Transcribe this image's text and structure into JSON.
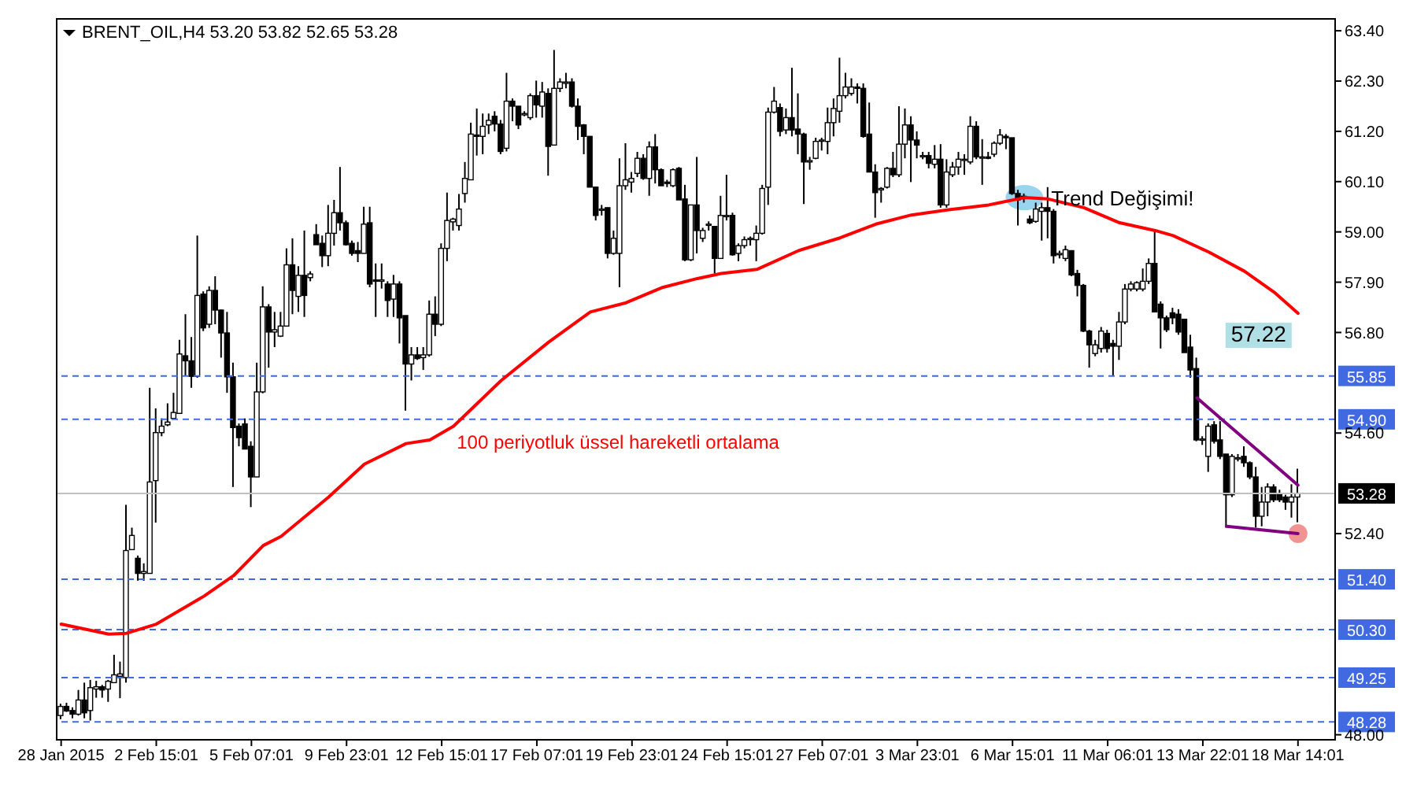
{
  "chart_data": {
    "type": "candlestick",
    "title": "BRENT_OIL,H4 53.20 53.82 52.65 53.28",
    "color": "#000000",
    "categories": [
      "28 Jan 2015",
      null,
      null,
      null,
      null,
      null,
      null,
      null,
      null,
      null,
      null,
      null,
      null,
      null,
      null,
      null,
      "2 Feb 15:01",
      null,
      null,
      null,
      null,
      null,
      null,
      null,
      null,
      null,
      null,
      null,
      null,
      null,
      null,
      null,
      "5 Feb 07:01",
      null,
      null,
      null,
      null,
      null,
      null,
      null,
      null,
      null,
      null,
      null,
      null,
      null,
      null,
      null,
      "9 Feb 23:01",
      null,
      null,
      null,
      null,
      null,
      null,
      null,
      null,
      null,
      null,
      null,
      null,
      null,
      null,
      null,
      "12 Feb 15:01",
      null,
      null,
      null,
      null,
      null,
      null,
      null,
      null,
      null,
      null,
      null,
      null,
      null,
      null,
      null,
      "17 Feb 07:01",
      null,
      null,
      null,
      null,
      null,
      null,
      null,
      null,
      null,
      null,
      null,
      null,
      null,
      null,
      null,
      "19 Feb 23:01",
      null,
      null,
      null,
      null,
      null,
      null,
      null,
      null,
      null,
      null,
      null,
      null,
      null,
      null,
      null,
      "24 Feb 15:01",
      null,
      null,
      null,
      null,
      null,
      null,
      null,
      null,
      null,
      null,
      null,
      null,
      null,
      null,
      null,
      "27 Feb 07:01",
      null,
      null,
      null,
      null,
      null,
      null,
      null,
      null,
      null,
      null,
      null,
      null,
      null,
      null,
      null,
      "3 Mar 23:01",
      null,
      null,
      null,
      null,
      null,
      null,
      null,
      null,
      null,
      null,
      null,
      null,
      null,
      null,
      null,
      "6 Mar 15:01",
      null,
      null,
      null,
      null,
      null,
      null,
      null,
      null,
      null,
      null,
      null,
      null,
      null,
      null,
      null,
      "11 Mar 06:01",
      null,
      null,
      null,
      null,
      null,
      null,
      null,
      null,
      null,
      null,
      null,
      null,
      null,
      null,
      null,
      "13 Mar 22:01",
      null,
      null,
      null,
      null,
      null,
      null,
      null,
      null,
      null,
      null,
      null,
      null,
      null,
      null,
      null,
      "18 Mar 14:01"
    ],
    "ohlc": [
      [
        48.42,
        48.68,
        48.34,
        48.62
      ],
      [
        48.62,
        48.7,
        48.5,
        48.52
      ],
      [
        48.53,
        48.6,
        48.36,
        48.45
      ],
      [
        48.45,
        48.98,
        48.42,
        48.76
      ],
      [
        48.76,
        49.14,
        48.36,
        48.48
      ],
      [
        48.53,
        49.2,
        48.31,
        49.03
      ],
      [
        49.0,
        49.18,
        48.81,
        49.05
      ],
      [
        49.05,
        49.09,
        48.81,
        48.98
      ],
      [
        49.0,
        49.2,
        48.72,
        49.17
      ],
      [
        49.14,
        49.75,
        49.14,
        49.31
      ],
      [
        49.28,
        49.6,
        48.8,
        49.33
      ],
      [
        49.25,
        53.03,
        49.14,
        52.03
      ],
      [
        52.05,
        52.53,
        52.05,
        52.36
      ],
      [
        51.86,
        51.92,
        51.37,
        51.53
      ],
      [
        51.53,
        51.75,
        51.37,
        51.57
      ],
      [
        51.53,
        55.59,
        51.53,
        53.53
      ],
      [
        53.56,
        55.14,
        52.64,
        54.61
      ],
      [
        54.61,
        54.92,
        54.53,
        54.75
      ],
      [
        54.78,
        55.25,
        54.75,
        54.84
      ],
      [
        54.92,
        55.48,
        54.92,
        55.05
      ],
      [
        55.03,
        56.64,
        55.03,
        56.33
      ],
      [
        56.29,
        57.2,
        55.86,
        56.18
      ],
      [
        56.18,
        56.7,
        55.59,
        55.84
      ],
      [
        55.84,
        58.92,
        55.81,
        57.61
      ],
      [
        57.64,
        57.7,
        56.83,
        56.9
      ],
      [
        56.98,
        57.81,
        56.9,
        57.72
      ],
      [
        57.72,
        58.03,
        56.98,
        57.29
      ],
      [
        57.29,
        57.3,
        56.25,
        56.79
      ],
      [
        56.79,
        57.25,
        55.48,
        55.83
      ],
      [
        55.83,
        56.14,
        53.42,
        54.72
      ],
      [
        54.75,
        54.81,
        54.31,
        54.5
      ],
      [
        54.8,
        54.92,
        54.25,
        54.25
      ],
      [
        54.31,
        54.42,
        52.98,
        53.64
      ],
      [
        53.64,
        56.14,
        53.64,
        55.5
      ],
      [
        55.5,
        57.81,
        55.47,
        57.36
      ],
      [
        57.36,
        57.42,
        56.03,
        56.81
      ],
      [
        56.81,
        57.25,
        56.48,
        56.86
      ],
      [
        56.72,
        57.25,
        56.7,
        56.94
      ],
      [
        56.94,
        58.64,
        56.94,
        58.28
      ],
      [
        58.28,
        58.86,
        57.2,
        57.72
      ],
      [
        57.59,
        58.25,
        57.25,
        58.05
      ],
      [
        58.05,
        59.03,
        57.14,
        57.61
      ],
      [
        58.0,
        58.14,
        57.92,
        58.08
      ],
      [
        58.94,
        59.17,
        58.72,
        58.72
      ],
      [
        58.75,
        58.92,
        58.23,
        58.48
      ],
      [
        58.48,
        59.59,
        58.25,
        58.97
      ],
      [
        58.97,
        59.7,
        58.7,
        59.42
      ],
      [
        59.42,
        60.42,
        59.03,
        59.2
      ],
      [
        59.2,
        59.25,
        58.7,
        58.72
      ],
      [
        58.75,
        58.81,
        58.48,
        58.53
      ],
      [
        58.59,
        58.78,
        58.34,
        58.53
      ],
      [
        58.53,
        59.55,
        58.53,
        59.17
      ],
      [
        59.2,
        59.55,
        57.79,
        57.86
      ],
      [
        57.95,
        58.31,
        57.14,
        57.92
      ],
      [
        57.92,
        58.31,
        57.76,
        57.95
      ],
      [
        57.86,
        57.92,
        57.14,
        57.5
      ],
      [
        57.53,
        58.06,
        57.14,
        57.86
      ],
      [
        57.86,
        57.92,
        56.56,
        57.12
      ],
      [
        57.17,
        57.17,
        55.09,
        56.11
      ],
      [
        56.11,
        56.48,
        55.75,
        56.31
      ],
      [
        56.31,
        56.48,
        56.2,
        56.23
      ],
      [
        56.25,
        56.48,
        55.98,
        56.31
      ],
      [
        56.31,
        57.5,
        56.27,
        57.2
      ],
      [
        57.2,
        57.59,
        56.72,
        56.98
      ],
      [
        56.98,
        58.75,
        56.94,
        58.64
      ],
      [
        58.64,
        59.86,
        58.36,
        59.25
      ],
      [
        59.22,
        59.31,
        59.03,
        59.28
      ],
      [
        59.14,
        59.83,
        59.03,
        59.5
      ],
      [
        59.84,
        60.53,
        59.64,
        60.17
      ],
      [
        60.14,
        61.39,
        60.14,
        61.14
      ],
      [
        61.12,
        61.7,
        60.67,
        61.09
      ],
      [
        61.09,
        61.59,
        60.7,
        61.31
      ],
      [
        61.34,
        61.59,
        61.14,
        61.44
      ],
      [
        61.53,
        61.64,
        61.2,
        61.36
      ],
      [
        61.36,
        61.45,
        60.7,
        60.76
      ],
      [
        60.83,
        62.48,
        60.76,
        61.86
      ],
      [
        61.86,
        61.92,
        61.42,
        61.75
      ],
      [
        61.75,
        61.75,
        61.25,
        61.34
      ],
      [
        61.56,
        61.64,
        61.53,
        61.59
      ],
      [
        61.5,
        62.03,
        61.45,
        61.98
      ],
      [
        61.98,
        62.31,
        61.5,
        61.78
      ],
      [
        61.75,
        62.28,
        61.5,
        62.06
      ],
      [
        62.03,
        62.14,
        60.23,
        60.87
      ],
      [
        60.9,
        62.98,
        60.9,
        62.14
      ],
      [
        62.14,
        62.36,
        62.06,
        62.28
      ],
      [
        62.25,
        62.48,
        62.14,
        62.28
      ],
      [
        62.28,
        62.36,
        61.72,
        61.75
      ],
      [
        61.75,
        61.92,
        61.01,
        61.31
      ],
      [
        61.34,
        61.36,
        60.7,
        61.09
      ],
      [
        61.09,
        61.09,
        59.98,
        59.98
      ],
      [
        59.98,
        59.98,
        59.25,
        59.36
      ],
      [
        59.5,
        59.59,
        59.36,
        59.5
      ],
      [
        59.53,
        59.53,
        58.42,
        58.53
      ],
      [
        58.53,
        59.03,
        58.5,
        58.86
      ],
      [
        58.53,
        60.61,
        57.79,
        60.01
      ],
      [
        60.01,
        60.94,
        59.92,
        60.14
      ],
      [
        60.09,
        60.31,
        59.86,
        60.17
      ],
      [
        60.28,
        60.75,
        60.2,
        60.61
      ],
      [
        60.61,
        60.7,
        60.14,
        60.17
      ],
      [
        60.17,
        60.98,
        59.79,
        60.86
      ],
      [
        60.86,
        61.14,
        60.06,
        60.36
      ],
      [
        60.36,
        60.39,
        60.01,
        60.01
      ],
      [
        60.09,
        60.14,
        59.98,
        60.06
      ],
      [
        60.01,
        60.39,
        59.98,
        60.36
      ],
      [
        60.39,
        60.42,
        59.7,
        59.7
      ],
      [
        59.72,
        60.03,
        58.36,
        58.39
      ],
      [
        58.39,
        59.59,
        58.36,
        59.59
      ],
      [
        59.59,
        60.64,
        58.53,
        59.03
      ],
      [
        58.86,
        59.09,
        58.78,
        59.03
      ],
      [
        59.17,
        59.23,
        59.03,
        59.17
      ],
      [
        59.12,
        59.12,
        58.09,
        58.42
      ],
      [
        58.42,
        59.79,
        58.42,
        59.36
      ],
      [
        59.36,
        60.25,
        59.25,
        59.36
      ],
      [
        59.36,
        59.42,
        58.48,
        58.5
      ],
      [
        58.53,
        58.75,
        58.36,
        58.7
      ],
      [
        58.7,
        58.9,
        58.64,
        58.83
      ],
      [
        58.86,
        58.9,
        58.7,
        58.86
      ],
      [
        58.83,
        59.14,
        58.36,
        58.97
      ],
      [
        58.97,
        60.03,
        58.94,
        59.95
      ],
      [
        59.98,
        61.72,
        59.59,
        61.62
      ],
      [
        61.62,
        62.17,
        61.59,
        61.86
      ],
      [
        61.72,
        61.81,
        61.09,
        61.2
      ],
      [
        61.23,
        61.7,
        61.14,
        61.5
      ],
      [
        61.5,
        62.59,
        61.09,
        61.23
      ],
      [
        61.25,
        62.03,
        60.7,
        61.14
      ],
      [
        61.14,
        61.17,
        59.61,
        60.53
      ],
      [
        60.53,
        60.64,
        60.36,
        60.56
      ],
      [
        60.61,
        61.06,
        60.59,
        60.98
      ],
      [
        61.0,
        61.06,
        60.78,
        61.01
      ],
      [
        60.98,
        61.72,
        60.7,
        61.39
      ],
      [
        61.39,
        61.92,
        61.09,
        61.7
      ],
      [
        61.64,
        62.81,
        61.39,
        61.98
      ],
      [
        61.98,
        62.48,
        61.92,
        62.17
      ],
      [
        62.03,
        62.36,
        61.98,
        62.17
      ],
      [
        62.17,
        62.25,
        61.81,
        62.14
      ],
      [
        62.14,
        62.25,
        61.06,
        61.09
      ],
      [
        61.14,
        61.83,
        60.31,
        60.31
      ],
      [
        60.31,
        60.48,
        59.31,
        59.86
      ],
      [
        59.92,
        59.98,
        59.64,
        59.95
      ],
      [
        59.98,
        60.42,
        59.95,
        60.39
      ],
      [
        60.39,
        60.75,
        60.2,
        60.25
      ],
      [
        60.25,
        61.75,
        60.2,
        60.92
      ],
      [
        60.92,
        61.7,
        60.61,
        61.34
      ],
      [
        61.34,
        61.53,
        60.09,
        61.01
      ],
      [
        61.01,
        61.2,
        60.61,
        60.9
      ],
      [
        60.67,
        60.75,
        60.59,
        60.67
      ],
      [
        60.67,
        60.75,
        60.39,
        60.5
      ],
      [
        60.48,
        60.9,
        60.39,
        60.59
      ],
      [
        60.59,
        60.92,
        59.53,
        59.59
      ],
      [
        59.59,
        60.59,
        59.53,
        60.31
      ],
      [
        60.25,
        60.53,
        60.2,
        60.42
      ],
      [
        60.42,
        60.75,
        60.25,
        60.59
      ],
      [
        60.59,
        60.7,
        60.25,
        60.59
      ],
      [
        60.53,
        61.53,
        60.48,
        61.31
      ],
      [
        61.31,
        61.42,
        60.59,
        60.64
      ],
      [
        60.64,
        61.03,
        60.03,
        60.64
      ],
      [
        60.64,
        60.75,
        60.59,
        60.61
      ],
      [
        60.7,
        60.98,
        60.64,
        60.94
      ],
      [
        60.94,
        61.25,
        60.9,
        61.12
      ],
      [
        61.09,
        61.14,
        60.81,
        61.06
      ],
      [
        61.06,
        61.06,
        59.81,
        59.84
      ],
      [
        59.84,
        59.92,
        59.14,
        59.7
      ],
      [
        59.78,
        59.84,
        59.64,
        59.78
      ],
      [
        59.28,
        59.36,
        59.17,
        59.2
      ],
      [
        59.23,
        59.64,
        59.2,
        59.5
      ],
      [
        59.45,
        59.64,
        58.81,
        59.53
      ],
      [
        59.53,
        59.98,
        58.86,
        59.45
      ],
      [
        59.45,
        59.5,
        58.31,
        58.48
      ],
      [
        58.5,
        58.59,
        58.42,
        58.53
      ],
      [
        58.42,
        58.7,
        58.36,
        58.61
      ],
      [
        58.59,
        58.59,
        58.03,
        58.06
      ],
      [
        58.09,
        58.17,
        57.59,
        57.83
      ],
      [
        57.83,
        57.86,
        56.81,
        56.83
      ],
      [
        56.83,
        56.86,
        56.03,
        56.53
      ],
      [
        56.34,
        56.64,
        56.28,
        56.53
      ],
      [
        56.45,
        56.92,
        56.36,
        56.83
      ],
      [
        56.78,
        56.86,
        56.36,
        56.45
      ],
      [
        56.56,
        56.64,
        55.86,
        56.5
      ],
      [
        56.5,
        57.25,
        56.2,
        57.03
      ],
      [
        57.03,
        57.86,
        56.98,
        57.75
      ],
      [
        57.75,
        57.92,
        57.7,
        57.86
      ],
      [
        57.75,
        57.92,
        57.7,
        57.89
      ],
      [
        57.75,
        58.2,
        57.7,
        57.92
      ],
      [
        57.92,
        58.42,
        57.86,
        58.31
      ],
      [
        58.31,
        59.06,
        57.25,
        57.25
      ],
      [
        57.42,
        57.48,
        56.45,
        57.12
      ],
      [
        57.12,
        57.17,
        56.81,
        56.86
      ],
      [
        57.23,
        57.34,
        56.98,
        57.12
      ],
      [
        57.2,
        57.31,
        56.75,
        56.81
      ],
      [
        57.09,
        57.09,
        56.36,
        56.36
      ],
      [
        56.48,
        56.75,
        55.81,
        55.98
      ],
      [
        56.01,
        56.25,
        54.42,
        54.45
      ],
      [
        54.45,
        54.53,
        54.34,
        54.47
      ],
      [
        54.09,
        54.81,
        53.75,
        54.75
      ],
      [
        54.78,
        54.86,
        54.37,
        54.42
      ],
      [
        54.45,
        54.86,
        54.03,
        54.09
      ],
      [
        54.14,
        54.14,
        52.53,
        53.25
      ],
      [
        53.25,
        54.14,
        53.2,
        54.09
      ],
      [
        54.06,
        54.14,
        53.98,
        54.06
      ],
      [
        54.09,
        54.31,
        53.86,
        53.95
      ],
      [
        53.95,
        53.98,
        53.59,
        53.64
      ],
      [
        53.64,
        53.86,
        52.53,
        52.78
      ],
      [
        52.78,
        53.42,
        52.56,
        53.09
      ],
      [
        53.09,
        53.5,
        52.78,
        53.42
      ],
      [
        53.42,
        53.48,
        53.09,
        53.14
      ],
      [
        53.28,
        53.36,
        53.09,
        53.14
      ],
      [
        53.2,
        53.25,
        52.92,
        53.09
      ],
      [
        53.09,
        53.48,
        52.75,
        53.2
      ],
      [
        53.2,
        53.82,
        52.65,
        53.28
      ]
    ],
    "series": [
      {
        "type": "line",
        "name": "100 periyotluk üssel hareketli ortalama",
        "color": "#ff0000",
        "values": [
          50.42,
          null,
          null,
          null,
          null,
          null,
          null,
          null,
          50.2,
          null,
          null,
          50.22,
          null,
          null,
          null,
          null,
          50.42,
          null,
          null,
          null,
          null,
          null,
          null,
          null,
          51.03,
          null,
          null,
          null,
          null,
          51.48,
          null,
          null,
          null,
          null,
          52.14,
          null,
          null,
          52.34,
          null,
          null,
          null,
          null,
          null,
          null,
          null,
          53.2,
          null,
          null,
          null,
          null,
          null,
          53.92,
          null,
          null,
          null,
          null,
          null,
          null,
          54.37,
          null,
          null,
          null,
          54.45,
          null,
          null,
          null,
          54.75,
          null,
          null,
          null,
          55.25,
          null,
          null,
          null,
          55.75,
          null,
          null,
          null,
          null,
          null,
          null,
          null,
          56.59,
          null,
          null,
          null,
          null,
          null,
          null,
          57.25,
          null,
          null,
          null,
          null,
          null,
          57.45,
          null,
          null,
          null,
          null,
          null,
          57.78,
          null,
          null,
          null,
          null,
          null,
          57.98,
          null,
          null,
          null,
          58.09,
          null,
          null,
          null,
          null,
          null,
          58.18,
          null,
          null,
          null,
          null,
          null,
          null,
          58.59,
          null,
          null,
          null,
          null,
          null,
          null,
          58.87,
          null,
          null,
          null,
          null,
          null,
          59.17,
          null,
          null,
          null,
          null,
          null,
          59.37,
          null,
          null,
          null,
          null,
          null,
          59.48,
          null,
          null,
          null,
          null,
          null,
          null,
          59.59,
          null,
          null,
          null,
          null,
          null,
          59.75,
          null,
          null,
          null,
          59.72,
          null,
          null,
          null,
          null,
          null,
          59.53,
          null,
          null,
          null,
          null,
          null,
          59.2,
          null,
          null,
          null,
          null,
          null,
          59.03,
          null,
          null,
          58.92,
          null,
          null,
          null,
          null,
          null,
          58.56,
          null,
          null,
          null,
          null,
          null,
          58.14,
          null,
          null,
          null,
          null,
          57.68,
          null,
          null,
          null,
          57.22
        ],
        "value_labels": [
          null,
          null,
          null,
          null,
          null,
          null,
          null,
          null,
          null,
          null,
          null,
          null,
          null,
          null,
          null,
          null,
          null,
          null,
          null,
          null,
          null,
          null,
          null,
          null,
          null,
          null,
          null,
          null,
          null,
          null,
          null,
          null,
          null,
          null,
          null,
          null,
          null,
          null,
          null,
          null,
          null,
          null,
          null,
          null,
          null,
          null,
          null,
          null,
          null,
          null,
          null,
          null,
          null,
          null,
          null,
          null,
          null,
          null,
          null,
          null,
          null,
          null,
          null,
          null,
          null,
          null,
          null,
          null,
          null,
          null,
          null,
          null,
          null,
          null,
          null,
          null,
          null,
          null,
          null,
          null,
          null,
          null,
          null,
          null,
          null,
          null,
          null,
          null,
          null,
          null,
          null,
          null,
          null,
          null,
          null,
          null,
          null,
          null,
          null,
          null,
          null,
          null,
          null,
          null,
          null,
          null,
          null,
          null,
          null,
          null,
          null,
          null,
          null,
          null,
          null,
          null,
          null,
          null,
          null,
          null,
          null,
          null,
          null,
          null,
          null,
          null,
          null,
          null,
          null,
          null,
          null,
          null,
          null,
          null,
          null,
          null,
          null,
          null,
          null,
          null,
          null,
          null,
          null,
          null,
          null,
          null,
          null,
          null,
          null,
          null,
          null,
          null,
          null,
          null,
          null,
          null,
          null,
          null,
          null,
          null,
          null,
          null,
          null,
          null,
          null,
          null,
          null,
          null,
          null,
          null,
          null,
          null,
          null,
          null,
          null,
          null,
          null,
          null,
          null,
          null,
          null,
          null,
          null,
          null,
          null,
          null,
          null,
          null,
          null,
          null,
          null,
          null,
          null,
          null,
          null,
          null,
          null,
          null,
          null,
          null,
          null,
          null,
          null,
          null,
          null,
          null,
          null,
          null,
          "57.22"
        ]
      },
      {
        "type": "line",
        "color": "#800080",
        "values": [
          null,
          null,
          null,
          null,
          null,
          null,
          null,
          null,
          null,
          null,
          null,
          null,
          null,
          null,
          null,
          null,
          null,
          null,
          null,
          null,
          null,
          null,
          null,
          null,
          null,
          null,
          null,
          null,
          null,
          null,
          null,
          null,
          null,
          null,
          null,
          null,
          null,
          null,
          null,
          null,
          null,
          null,
          null,
          null,
          null,
          null,
          null,
          null,
          null,
          null,
          null,
          null,
          null,
          null,
          null,
          null,
          null,
          null,
          null,
          null,
          null,
          null,
          null,
          null,
          null,
          null,
          null,
          null,
          null,
          null,
          null,
          null,
          null,
          null,
          null,
          null,
          null,
          null,
          null,
          null,
          null,
          null,
          null,
          null,
          null,
          null,
          null,
          null,
          null,
          null,
          null,
          null,
          null,
          null,
          null,
          null,
          null,
          null,
          null,
          null,
          null,
          null,
          null,
          null,
          null,
          null,
          null,
          null,
          null,
          null,
          null,
          null,
          null,
          null,
          null,
          null,
          null,
          null,
          null,
          null,
          null,
          null,
          null,
          null,
          null,
          null,
          null,
          null,
          null,
          null,
          null,
          null,
          null,
          null,
          null,
          null,
          null,
          null,
          null,
          null,
          null,
          null,
          null,
          null,
          null,
          null,
          null,
          null,
          null,
          null,
          null,
          null,
          null,
          null,
          null,
          null,
          null,
          null,
          null,
          null,
          null,
          null,
          null,
          null,
          null,
          null,
          null,
          null,
          null,
          null,
          null,
          null,
          null,
          null,
          null,
          null,
          null,
          null,
          null,
          null,
          null,
          null,
          null,
          null,
          null,
          null,
          null,
          null,
          null,
          null,
          null,
          55.37,
          null,
          null,
          null,
          null,
          null,
          null,
          null,
          null,
          null,
          null,
          null,
          null,
          null,
          null,
          null,
          null,
          53.46
        ]
      },
      {
        "type": "line",
        "color": "#800080",
        "values": [
          null,
          null,
          null,
          null,
          null,
          null,
          null,
          null,
          null,
          null,
          null,
          null,
          null,
          null,
          null,
          null,
          null,
          null,
          null,
          null,
          null,
          null,
          null,
          null,
          null,
          null,
          null,
          null,
          null,
          null,
          null,
          null,
          null,
          null,
          null,
          null,
          null,
          null,
          null,
          null,
          null,
          null,
          null,
          null,
          null,
          null,
          null,
          null,
          null,
          null,
          null,
          null,
          null,
          null,
          null,
          null,
          null,
          null,
          null,
          null,
          null,
          null,
          null,
          null,
          null,
          null,
          null,
          null,
          null,
          null,
          null,
          null,
          null,
          null,
          null,
          null,
          null,
          null,
          null,
          null,
          null,
          null,
          null,
          null,
          null,
          null,
          null,
          null,
          null,
          null,
          null,
          null,
          null,
          null,
          null,
          null,
          null,
          null,
          null,
          null,
          null,
          null,
          null,
          null,
          null,
          null,
          null,
          null,
          null,
          null,
          null,
          null,
          null,
          null,
          null,
          null,
          null,
          null,
          null,
          null,
          null,
          null,
          null,
          null,
          null,
          null,
          null,
          null,
          null,
          null,
          null,
          null,
          null,
          null,
          null,
          null,
          null,
          null,
          null,
          null,
          null,
          null,
          null,
          null,
          null,
          null,
          null,
          null,
          null,
          null,
          null,
          null,
          null,
          null,
          null,
          null,
          null,
          null,
          null,
          null,
          null,
          null,
          null,
          null,
          null,
          null,
          null,
          null,
          null,
          null,
          null,
          null,
          null,
          null,
          null,
          null,
          null,
          null,
          null,
          null,
          null,
          null,
          null,
          null,
          null,
          null,
          null,
          null,
          null,
          null,
          null,
          null,
          null,
          null,
          null,
          null,
          52.56,
          null,
          null,
          null,
          null,
          null,
          null,
          null,
          null,
          null,
          null,
          null,
          52.4
        ]
      }
    ],
    "ylim": [
      47.89,
      63.66
    ],
    "yticks": [
      {
        "value": 63.4,
        "label": "63.40"
      },
      {
        "value": 62.3,
        "label": "62.30"
      },
      {
        "value": 61.2,
        "label": "61.20"
      },
      {
        "value": 60.1,
        "label": "60.10"
      },
      {
        "value": 59,
        "label": "59.00"
      },
      {
        "value": 57.9,
        "label": "57.90"
      },
      {
        "value": 56.8,
        "label": "56.80"
      },
      {
        "value": 54.6,
        "label": "54.60"
      },
      {
        "value": 52.4,
        "label": "52.40"
      },
      {
        "value": 48,
        "label": "48.00"
      }
    ],
    "ref_lines": [
      {
        "axis": "y",
        "value": 55.85,
        "label": "55.85",
        "color": "#4169e1",
        "line_style": "dashed"
      },
      {
        "axis": "y",
        "value": 54.9,
        "label": "54.90",
        "color": "#4169e1",
        "line_style": "dashed"
      },
      {
        "axis": "y",
        "value": 53.28,
        "label": "53.28",
        "color": "#c0c0c0",
        "line_style": "solid"
      },
      {
        "axis": "y",
        "value": 51.4,
        "label": "51.40",
        "color": "#4169e1",
        "line_style": "dashed"
      },
      {
        "axis": "y",
        "value": 50.3,
        "label": "50.30",
        "color": "#4169e1",
        "line_style": "dashed"
      },
      {
        "axis": "y",
        "value": 49.25,
        "label": "49.25",
        "color": "#4169e1",
        "line_style": "dashed"
      },
      {
        "axis": "y",
        "value": 48.28,
        "label": "48.28",
        "color": "#4169e1",
        "line_style": "dashed"
      }
    ],
    "annotations": [
      "Trend Değişimi!"
    ]
  }
}
